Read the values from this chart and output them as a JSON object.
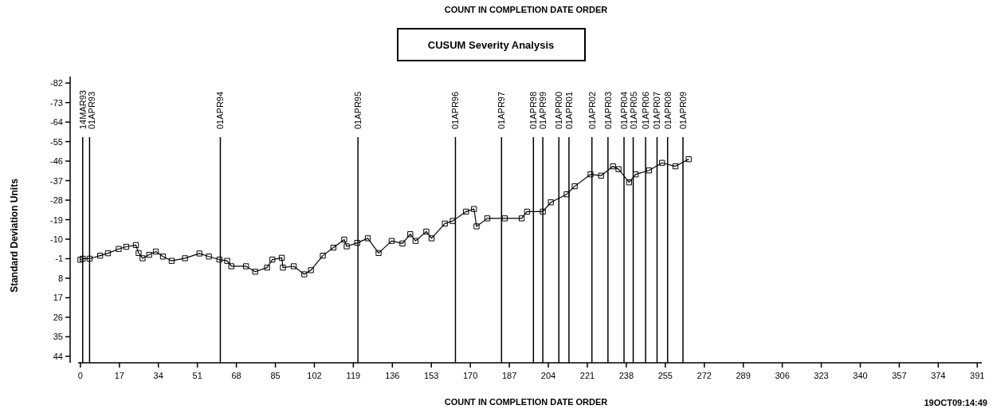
{
  "chart_data": {
    "type": "line",
    "title": "CUSUM Severity Analysis",
    "xlabel": "COUNT IN COMPLETION DATE ORDER",
    "ylabel": "Standard Deviation Units",
    "annotations": [
      "COUNT IN COMPLETION DATE ORDER",
      "19OCT09:14:49"
    ],
    "xlim": [
      -1,
      393
    ],
    "xticks": [
      0,
      17,
      34,
      51,
      68,
      85,
      102,
      119,
      136,
      153,
      170,
      187,
      204,
      221,
      238,
      255,
      272,
      289,
      306,
      323,
      340,
      357,
      374,
      391
    ],
    "ylim": [
      47,
      -85
    ],
    "yticks": [
      -82,
      -73,
      -64,
      -55,
      -46,
      -37,
      -28,
      -19,
      -10,
      -1,
      8,
      17,
      26,
      35,
      44
    ],
    "marker": "square",
    "series": [
      {
        "color": "#000000",
        "x": [
          0,
          1,
          4,
          8.6,
          12,
          16.7,
          20,
          24.2,
          25.4,
          27.1,
          30,
          32.9,
          36,
          39.8,
          45.6,
          51.9,
          56,
          60.6,
          64,
          65.8,
          72.2,
          76.2,
          81.4,
          83.7,
          87.8,
          88.3,
          93,
          97.6,
          100.5,
          105.7,
          110.3,
          115,
          116.1,
          120.7,
          125.3,
          130,
          135.7,
          140.4,
          143.8,
          146.1,
          150.8,
          153.1,
          158.9,
          162.3,
          168.1,
          171.6,
          172.7,
          177.4,
          185,
          192.4,
          194.7,
          201.6,
          205.1,
          212,
          215.5,
          222.4,
          227,
          232.2,
          234.6,
          239.2,
          242.1,
          247.9,
          253.6,
          259.4,
          265.2
        ],
        "values": [
          -0.5,
          -1,
          -1,
          -2.4,
          -3.5,
          -5.5,
          -6.5,
          -7.3,
          -3.6,
          -1.2,
          -2.8,
          -4.3,
          -2,
          0,
          -1.2,
          -3.4,
          -2,
          -0.6,
          0,
          2.5,
          2.5,
          5,
          3.1,
          -0.6,
          -1.4,
          3.1,
          2.5,
          6.2,
          4.3,
          -2.4,
          -6.1,
          -9.8,
          -6.7,
          -8.3,
          -10.4,
          -3.6,
          -9.2,
          -8,
          -12.3,
          -9.2,
          -13.5,
          -10.4,
          -17.2,
          -18.4,
          -22.7,
          -23.9,
          -15.9,
          -19.6,
          -19.6,
          -19.6,
          -22.7,
          -22.7,
          -27,
          -30.7,
          -34.4,
          -39.9,
          -39.3,
          -43.6,
          -42.3,
          -36.2,
          -39.9,
          -41.7,
          -45.2,
          -43.6,
          -46.9
        ]
      }
    ],
    "ref_lines": [
      {
        "axis": "x",
        "value": 1,
        "label": "14MAR93"
      },
      {
        "axis": "x",
        "value": 4,
        "label": "01APR93"
      },
      {
        "axis": "x",
        "value": 61,
        "label": "01APR94"
      },
      {
        "axis": "x",
        "value": 121,
        "label": "01APR95"
      },
      {
        "axis": "x",
        "value": 163.5,
        "label": "01APR96"
      },
      {
        "axis": "x",
        "value": 183.6,
        "label": "01APR97"
      },
      {
        "axis": "x",
        "value": 197.5,
        "label": "01APR98"
      },
      {
        "axis": "x",
        "value": 201.6,
        "label": "01APR99"
      },
      {
        "axis": "x",
        "value": 208.6,
        "label": "01APR00"
      },
      {
        "axis": "x",
        "value": 213,
        "label": "01APR01"
      },
      {
        "axis": "x",
        "value": 223,
        "label": "01APR02"
      },
      {
        "axis": "x",
        "value": 230,
        "label": "01APR03"
      },
      {
        "axis": "x",
        "value": 237,
        "label": "01APR04"
      },
      {
        "axis": "x",
        "value": 241,
        "label": "01APR05"
      },
      {
        "axis": "x",
        "value": 246.4,
        "label": "01APR06"
      },
      {
        "axis": "x",
        "value": 251.4,
        "label": "01APR07"
      },
      {
        "axis": "x",
        "value": 256,
        "label": "01APR08"
      },
      {
        "axis": "x",
        "value": 262.7,
        "label": "01APR09"
      }
    ]
  }
}
